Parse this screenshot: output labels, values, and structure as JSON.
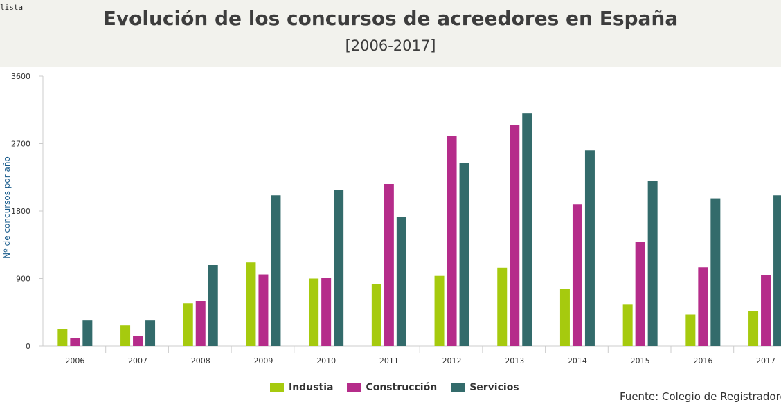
{
  "corner_label": "lista",
  "chart_data": {
    "type": "bar",
    "title": "Evolución de los concursos de acreedores en España",
    "subtitle": "[2006-2017]",
    "categories": [
      "2006",
      "2007",
      "2008",
      "2009",
      "2010",
      "2011",
      "2012",
      "2013",
      "2014",
      "2015",
      "2016",
      "2017"
    ],
    "series": [
      {
        "name": "Industia",
        "color": "#a6ca0e",
        "values": [
          225,
          275,
          570,
          1115,
          900,
          825,
          935,
          1045,
          760,
          560,
          420,
          465
        ]
      },
      {
        "name": "Construcción",
        "color": "#b52c8a",
        "values": [
          110,
          130,
          600,
          955,
          910,
          2160,
          2800,
          2950,
          1890,
          1390,
          1050,
          945
        ]
      },
      {
        "name": "Servicios",
        "color": "#336b6b",
        "values": [
          340,
          340,
          1080,
          2010,
          2080,
          1720,
          2440,
          3100,
          2610,
          2200,
          1970,
          2010
        ]
      }
    ],
    "ylabel": "Nº de concursos por año",
    "xlabel": "",
    "ylim": [
      0,
      3600
    ],
    "yticks": [
      "0",
      "900",
      "1800",
      "2700",
      "3600"
    ],
    "legend": "bottom",
    "source": "Fuente: Colegio de Registradores"
  }
}
